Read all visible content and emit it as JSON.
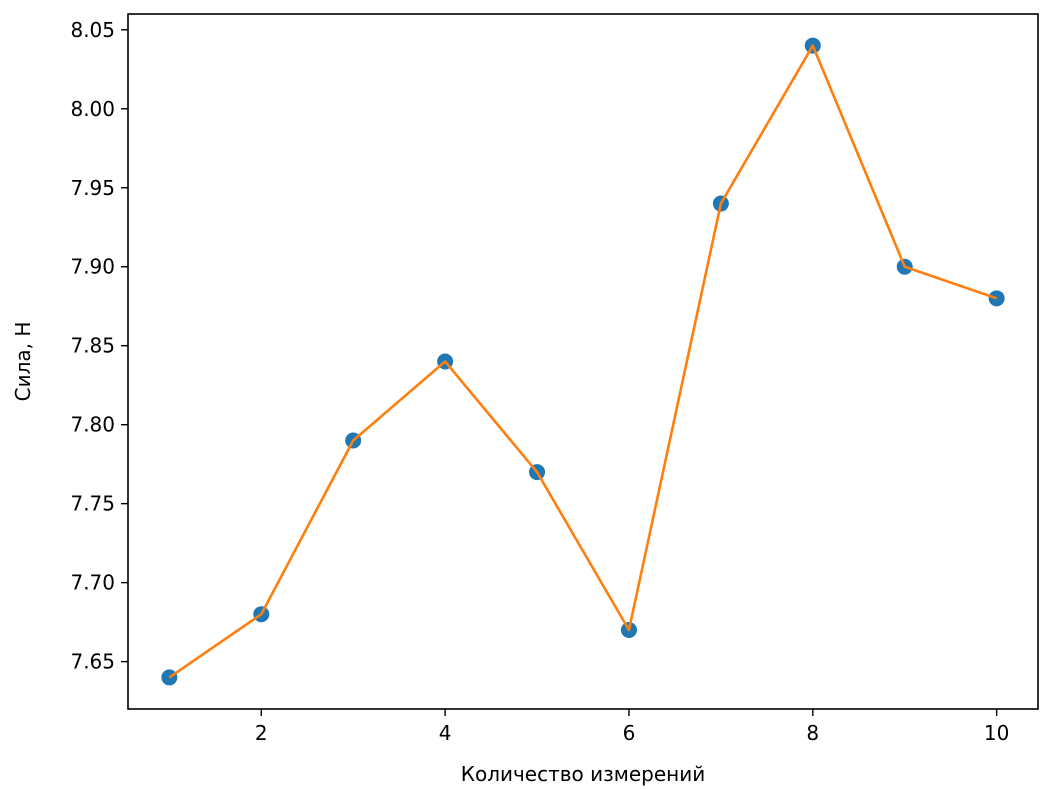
{
  "chart_data": {
    "type": "line",
    "title": "",
    "xlabel": "Количество измерений",
    "ylabel": "Сила, Н",
    "x": [
      1,
      2,
      3,
      4,
      5,
      6,
      7,
      8,
      9,
      10
    ],
    "series": [
      {
        "values": [
          7.64,
          7.68,
          7.79,
          7.84,
          7.77,
          7.67,
          7.94,
          8.04,
          7.9,
          7.88
        ],
        "markers": true,
        "marker_color": "#1f77b4",
        "line": true,
        "line_color": "#ff7f0e"
      }
    ],
    "xlim": [
      0.55,
      10.45
    ],
    "ylim": [
      7.62,
      8.06
    ],
    "xticks": [
      2,
      4,
      6,
      8,
      10
    ],
    "xtick_labels": [
      "2",
      "4",
      "6",
      "8",
      "10"
    ],
    "yticks": [
      7.65,
      7.7,
      7.75,
      7.8,
      7.85,
      7.9,
      7.95,
      8.0,
      8.05
    ],
    "ytick_labels": [
      "7.65",
      "7.70",
      "7.75",
      "7.80",
      "7.85",
      "7.90",
      "7.95",
      "8.00",
      "8.05"
    ],
    "grid": false,
    "legend": "none"
  }
}
